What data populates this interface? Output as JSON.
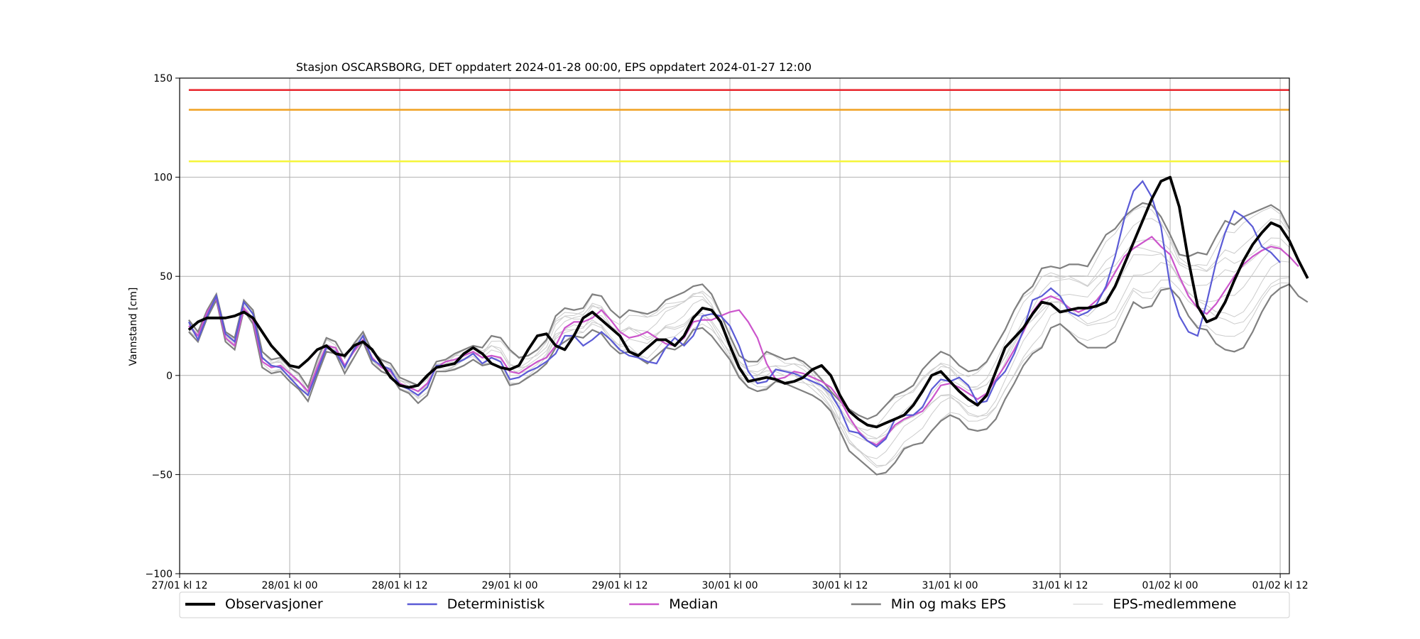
{
  "chart_data": {
    "type": "line",
    "title": "Stasjon OSCARSBORG, DET oppdatert 2024-01-28 00:00, EPS oppdatert 2024-01-27 12:00",
    "xlabel": "",
    "ylabel": "Vannstand [cm]",
    "xlim": [
      0,
      121
    ],
    "ylim": [
      -100,
      150
    ],
    "grid": true,
    "legend_position": "bottom",
    "x_ticks": [
      {
        "x": 0,
        "label": "27/01 kl 12"
      },
      {
        "x": 12,
        "label": "28/01 kl 00"
      },
      {
        "x": 24,
        "label": "28/01 kl 12"
      },
      {
        "x": 36,
        "label": "29/01 kl 00"
      },
      {
        "x": 48,
        "label": "29/01 kl 12"
      },
      {
        "x": 60,
        "label": "30/01 kl 00"
      },
      {
        "x": 72,
        "label": "30/01 kl 12"
      },
      {
        "x": 84,
        "label": "31/01 kl 00"
      },
      {
        "x": 96,
        "label": "31/01 kl 12"
      },
      {
        "x": 108,
        "label": "01/02 kl 00"
      },
      {
        "x": 120,
        "label": "01/02 kl 12"
      }
    ],
    "y_ticks": [
      {
        "y": -100,
        "label": "−100"
      },
      {
        "y": -50,
        "label": "−50"
      },
      {
        "y": 0,
        "label": "0"
      },
      {
        "y": 50,
        "label": "50"
      },
      {
        "y": 100,
        "label": "100"
      },
      {
        "y": 150,
        "label": "150"
      }
    ],
    "thresholds": [
      {
        "y": 144,
        "color": "#e8242b"
      },
      {
        "y": 134,
        "color": "#f0a020"
      },
      {
        "y": 108,
        "color": "#f5f53a"
      }
    ],
    "series": [
      {
        "name": "Observasjoner",
        "color": "#000000",
        "x_start": 1,
        "values": [
          23,
          27,
          29,
          29,
          29,
          30,
          32,
          29,
          22,
          15,
          10,
          5,
          4,
          8,
          13,
          15,
          11,
          10,
          15,
          17,
          13,
          6,
          -1,
          -5,
          -6,
          -5,
          0,
          4,
          5,
          6,
          11,
          14,
          11,
          6,
          4,
          3,
          5,
          13,
          20,
          21,
          15,
          13,
          20,
          29,
          32,
          28,
          24,
          20,
          12,
          10,
          14,
          18,
          18,
          15,
          20,
          29,
          34,
          33,
          27,
          15,
          4,
          -3,
          -2,
          -1,
          -2,
          -4,
          -3,
          -1,
          3,
          5,
          0,
          -10,
          -18,
          -22,
          -25,
          -26,
          -24,
          -22,
          -20,
          -15,
          -8,
          0,
          2,
          -3,
          -8,
          -12,
          -15,
          -10,
          2,
          14,
          19,
          24,
          31,
          37,
          36,
          32,
          33,
          34,
          34,
          35,
          37,
          45,
          56,
          67,
          78,
          89,
          98,
          100,
          85,
          58,
          35,
          27,
          29,
          37,
          48,
          58,
          66,
          72,
          77,
          75,
          68,
          58,
          49
        ]
      },
      {
        "name": "Deterministisk",
        "color": "#5b5bd6",
        "x_start": 1,
        "values": [
          27,
          18,
          30,
          40,
          21,
          17,
          37,
          31,
          9,
          5,
          4,
          -1,
          -6,
          -10,
          2,
          14,
          12,
          4,
          13,
          20,
          8,
          5,
          3,
          -5,
          -7,
          -10,
          -6,
          5,
          5,
          6,
          8,
          11,
          6,
          9,
          7,
          -2,
          -1,
          2,
          4,
          7,
          11,
          20,
          20,
          15,
          18,
          22,
          18,
          13,
          10,
          9,
          7,
          6,
          14,
          19,
          15,
          20,
          30,
          31,
          30,
          25,
          15,
          2,
          -4,
          -3,
          3,
          2,
          1,
          -1,
          -3,
          -5,
          -9,
          -17,
          -28,
          -29,
          -33,
          -36,
          -32,
          -22,
          -20,
          -20,
          -16,
          -7,
          -2,
          -3,
          -1,
          -5,
          -14,
          -13,
          -3,
          2,
          11,
          23,
          38,
          40,
          44,
          40,
          32,
          30,
          32,
          36,
          45,
          60,
          79,
          93,
          98,
          90,
          75,
          45,
          30,
          22,
          20,
          37,
          57,
          72,
          83,
          80,
          75,
          65,
          62,
          57
        ]
      },
      {
        "name": "Median",
        "color": "#cc55cc",
        "x_start": 1,
        "values": [
          25,
          20,
          32,
          39,
          19,
          15,
          34,
          28,
          7,
          4,
          5,
          1,
          -3,
          -8,
          4,
          15,
          14,
          5,
          12,
          18,
          9,
          4,
          2,
          -4,
          -6,
          -8,
          -4,
          4,
          7,
          8,
          10,
          12,
          9,
          10,
          9,
          2,
          1,
          4,
          7,
          9,
          15,
          24,
          27,
          27,
          29,
          33,
          28,
          22,
          19,
          20,
          22,
          19,
          16,
          15,
          19,
          27,
          28,
          28,
          30,
          32,
          33,
          27,
          19,
          6,
          -2,
          -1,
          2,
          1,
          -1,
          -3,
          -6,
          -12,
          -21,
          -28,
          -33,
          -35,
          -31,
          -25,
          -22,
          -20,
          -18,
          -12,
          -5,
          -4,
          -6,
          -9,
          -12,
          -9,
          -2,
          5,
          13,
          22,
          32,
          38,
          40,
          38,
          34,
          32,
          34,
          38,
          44,
          52,
          60,
          64,
          67,
          70,
          65,
          61,
          50,
          40,
          34,
          31,
          36,
          43,
          50,
          56,
          60,
          63,
          65,
          64,
          60,
          55
        ]
      },
      {
        "name": "Min og maks EPS",
        "color": "#808080",
        "x_start": 1,
        "values": [
          28,
          22,
          33,
          41,
          22,
          19,
          38,
          33,
          12,
          8,
          9,
          4,
          1,
          -6,
          8,
          19,
          17,
          9,
          16,
          22,
          12,
          8,
          6,
          -1,
          -3,
          -5,
          -1,
          7,
          8,
          11,
          13,
          15,
          14,
          20,
          19,
          13,
          9,
          10,
          13,
          18,
          30,
          34,
          33,
          34,
          41,
          40,
          33,
          29,
          33,
          32,
          31,
          33,
          38,
          40,
          42,
          45,
          46,
          41,
          31,
          20,
          10,
          7,
          7,
          12,
          10,
          8,
          9,
          7,
          3,
          -2,
          -8,
          -13,
          -17,
          -20,
          -22,
          -20,
          -15,
          -10,
          -8,
          -5,
          3,
          8,
          12,
          10,
          5,
          2,
          3,
          7,
          15,
          23,
          33,
          41,
          45,
          54,
          55,
          54,
          56,
          56,
          55,
          63,
          71,
          74,
          80,
          84,
          87,
          86,
          80,
          71,
          61,
          60,
          62,
          61,
          70,
          78,
          76,
          80,
          82,
          84,
          86,
          83,
          74
        ]
      },
      {
        "name": "Min EPS",
        "color": "#808080",
        "x_start": 1,
        "values": [
          22,
          17,
          29,
          38,
          17,
          13,
          33,
          26,
          4,
          1,
          2,
          -3,
          -7,
          -13,
          0,
          12,
          11,
          1,
          9,
          17,
          6,
          2,
          0,
          -7,
          -9,
          -14,
          -10,
          2,
          2,
          3,
          5,
          8,
          5,
          6,
          4,
          -5,
          -4,
          -1,
          2,
          6,
          14,
          17,
          20,
          19,
          23,
          21,
          15,
          11,
          12,
          9,
          6,
          10,
          14,
          13,
          16,
          23,
          24,
          20,
          14,
          8,
          -1,
          -6,
          -8,
          -7,
          -3,
          -4,
          -6,
          -8,
          -10,
          -13,
          -18,
          -28,
          -38,
          -42,
          -46,
          -50,
          -49,
          -44,
          -37,
          -35,
          -34,
          -28,
          -23,
          -20,
          -22,
          -27,
          -28,
          -27,
          -22,
          -12,
          -4,
          5,
          11,
          14,
          24,
          26,
          22,
          17,
          14,
          14,
          14,
          17,
          27,
          37,
          34,
          35,
          43,
          44,
          39,
          30,
          24,
          23,
          16,
          13,
          12,
          14,
          22,
          32,
          40,
          44,
          46,
          40,
          37
        ]
      }
    ],
    "members_label": "EPS-medlemmene",
    "members_color": "#cccccc",
    "legend": [
      {
        "label": "Observasjoner",
        "color": "#000000"
      },
      {
        "label": "Deterministisk",
        "color": "#5b5bd6"
      },
      {
        "label": "Median",
        "color": "#cc55cc"
      },
      {
        "label": "Min og maks EPS",
        "color": "#808080"
      },
      {
        "label": "EPS-medlemmene",
        "color": "#cccccc"
      }
    ]
  }
}
